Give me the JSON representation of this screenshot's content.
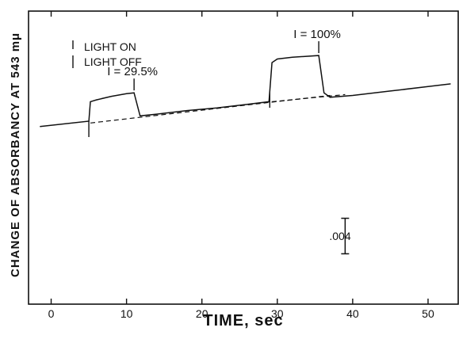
{
  "chart_data": {
    "type": "line",
    "xlabel": "TIME, sec",
    "ylabel": "CHANGE OF ABSORBANCY AT 543 mμ",
    "xlim": [
      -3,
      54
    ],
    "x_ticks": [
      0,
      10,
      20,
      30,
      40,
      50
    ],
    "x_tick_labels": [
      "0",
      "10",
      "20",
      "30",
      "40",
      "50"
    ],
    "ylim": [
      -0.02,
      0.013
    ],
    "grid": false,
    "legend": [
      {
        "marker": "up-tick",
        "label": "LIGHT ON"
      },
      {
        "marker": "down-tick",
        "label": "LIGHT OFF"
      }
    ],
    "annotations": [
      {
        "text": "I = 29.5%",
        "x": 11
      },
      {
        "text": "I = 100%",
        "x": 35.5
      }
    ],
    "scale_bar": {
      "label": ".004",
      "value": 0.004,
      "x": 39
    },
    "light_on_times": [
      5,
      29
    ],
    "light_off_times": [
      11,
      35.5
    ],
    "series": [
      {
        "style": "solid",
        "x": [
          -1.5,
          5,
          5.2,
          6,
          8,
          10,
          11,
          11.8,
          14,
          18,
          22,
          26,
          28.9,
          29.3,
          30,
          32,
          35.5,
          36.2,
          37,
          40,
          45,
          50,
          53
        ],
        "y": [
          0,
          0.0006,
          0.0028,
          0.003,
          0.0034,
          0.0037,
          0.0038,
          0.0012,
          0.0014,
          0.0018,
          0.0021,
          0.0025,
          0.0028,
          0.0072,
          0.0076,
          0.0078,
          0.008,
          0.0038,
          0.0033,
          0.0035,
          0.004,
          0.0045,
          0.0048
        ]
      },
      {
        "style": "dashed",
        "x": [
          5.2,
          37
        ],
        "y": [
          0.0004,
          0.0035
        ]
      },
      {
        "style": "dashed",
        "x": [
          29.3,
          39
        ],
        "y": [
          0.0028,
          0.0036
        ]
      }
    ]
  }
}
